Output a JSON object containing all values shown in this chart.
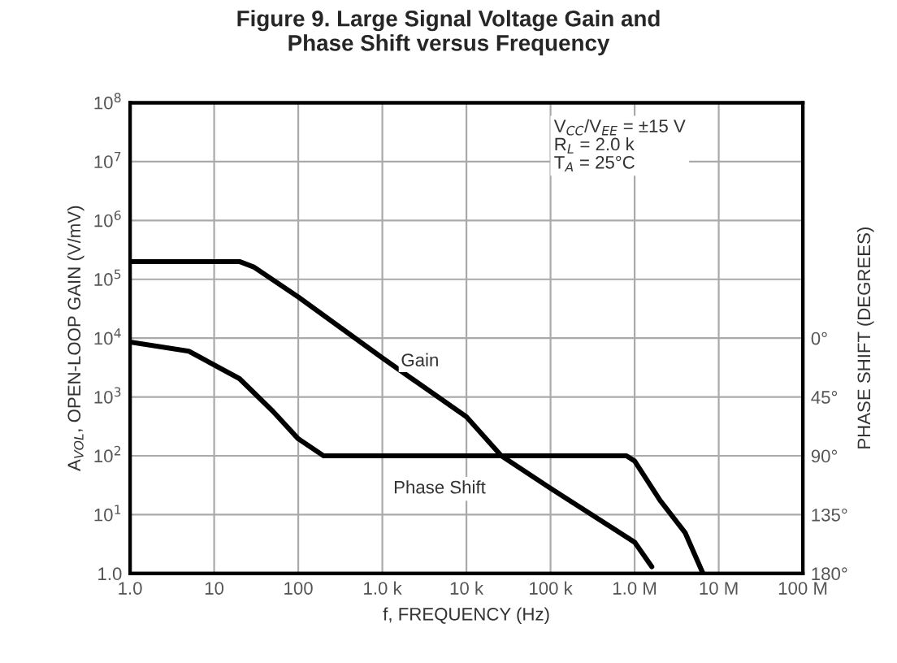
{
  "chart_data": {
    "type": "line",
    "title": "Figure 9. Large Signal Voltage Gain and\nPhase Shift versus Frequency",
    "xlabel": "f, FREQUENCY (Hz)",
    "ylabel": "A$_{VOL}$, OPEN-LOOP GAIN (V/mV)",
    "y2label": "PHASE SHIFT (DEGREES)",
    "log": "xy",
    "grid": true,
    "legend": false,
    "xlim": [
      1,
      100000000
    ],
    "ylim": [
      1,
      100000000
    ],
    "y2lim": [
      180,
      -180
    ],
    "xticks": [
      {
        "value": 1,
        "label": "1.0"
      },
      10,
      100,
      {
        "value": 1000,
        "label": "1.0 k"
      },
      {
        "value": 10000,
        "label": "10 k"
      },
      {
        "value": 100000,
        "label": "100 k"
      },
      {
        "value": 1000000,
        "label": "1.0 M"
      },
      {
        "value": 10000000,
        "label": "10 M"
      },
      {
        "value": 100000000,
        "label": "100 M"
      }
    ],
    "yticks": [
      {
        "value": 1,
        "label": "1.0"
      },
      {
        "value": 10,
        "label": "10$^{1}$"
      },
      {
        "value": 100,
        "label": "10$^{2}$"
      },
      {
        "value": 1000,
        "label": "10$^{3}$"
      },
      {
        "value": 10000,
        "label": "10$^{4}$"
      },
      {
        "value": 100000,
        "label": "10$^{5}$"
      },
      {
        "value": 1000000,
        "label": "10$^{6}$"
      },
      {
        "value": 10000000,
        "label": "10$^{7}$"
      },
      {
        "value": 100000000,
        "label": "10$^{8}$"
      }
    ],
    "y2ticks": [
      {
        "value": 0,
        "label": "0°"
      },
      {
        "value": 45,
        "label": "45°"
      },
      {
        "value": 90,
        "label": "90°"
      },
      {
        "value": 135,
        "label": "135°"
      },
      {
        "value": 180,
        "label": "180°"
      }
    ],
    "series": [
      {
        "color": "#000000",
        "x": [
          1,
          20,
          30,
          100,
          1000,
          10000,
          26000,
          100000,
          1000000,
          1600000
        ],
        "values": [
          200000,
          200000,
          160000,
          50000,
          4600,
          460,
          100,
          28,
          3.4,
          1.3
        ]
      },
      {
        "color": "#000000",
        "axis": "y2",
        "x": [
          1,
          5,
          20,
          50,
          100,
          200,
          800000,
          1000000,
          2000000,
          4000000,
          6500000
        ],
        "values": [
          3,
          10,
          31,
          56,
          77,
          90,
          90,
          94,
          124,
          149,
          180
        ]
      }
    ],
    "annotations": [
      {
        "text": "Gain",
        "x": 2800,
        "y": 4000
      },
      "Phase Shift",
      "V$_{CC}$/V$_{EE}$ = ±15 V\nR$_{L}$ = 2.0 k\nT$_{A}$ = 25°C"
    ]
  }
}
